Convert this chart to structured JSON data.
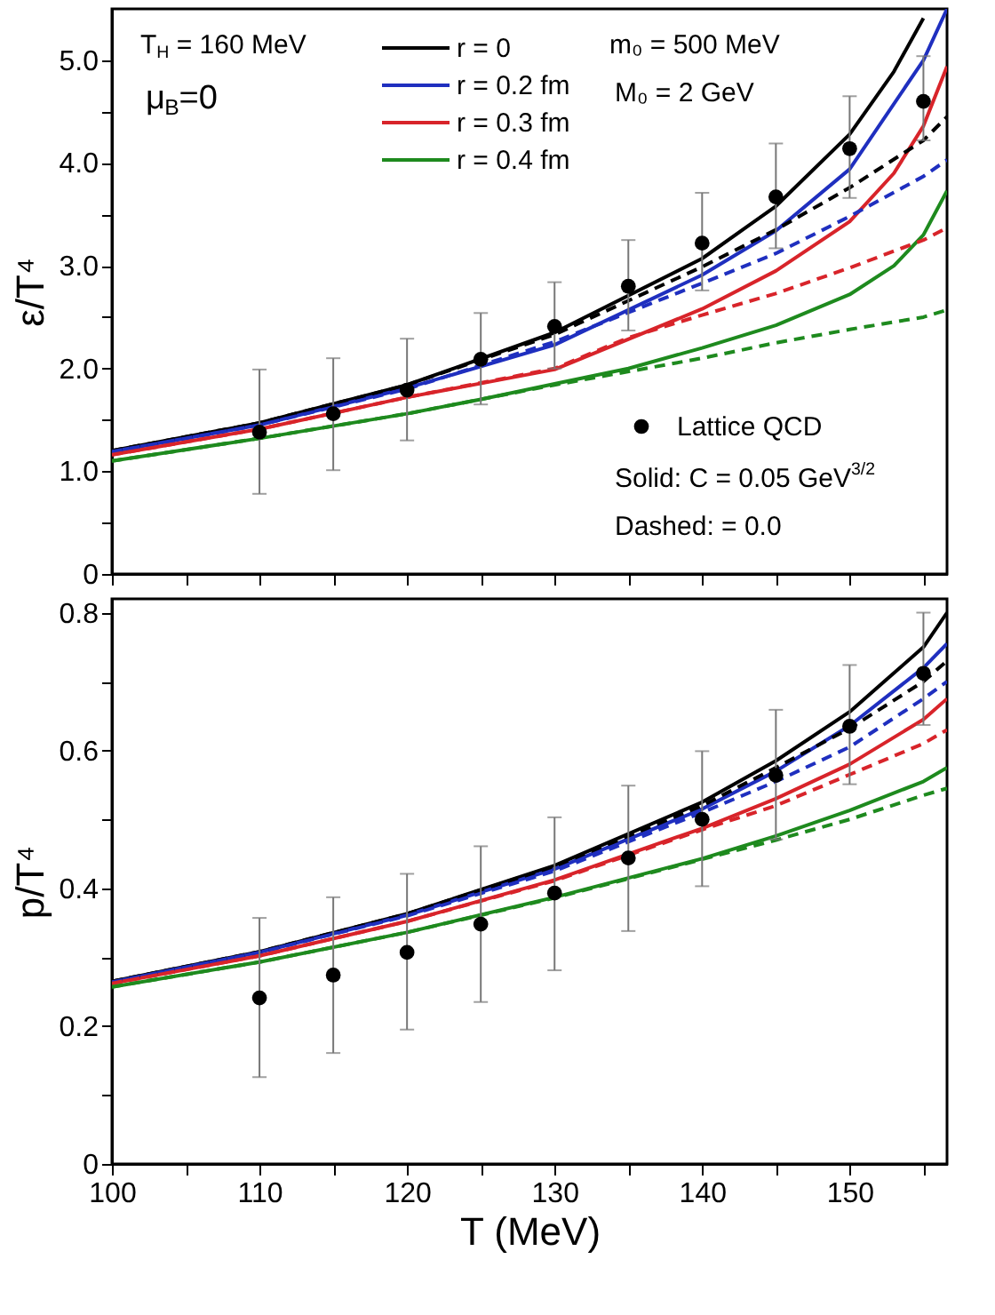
{
  "chart_data": [
    {
      "type": "line",
      "ylabel": "ε/T⁴",
      "xlim": [
        100,
        156.6
      ],
      "ylim": [
        0,
        5.5
      ],
      "xticks": [
        100,
        {
          "value": 105,
          "label": null
        },
        110,
        {
          "value": 115,
          "label": null
        },
        120,
        {
          "value": 125,
          "label": null
        },
        130,
        {
          "value": 135,
          "label": null
        },
        140,
        {
          "value": 145,
          "label": null
        },
        150,
        {
          "value": 155,
          "label": null
        }
      ],
      "yticks": [
        0,
        {
          "value": 0.5,
          "label": null
        },
        {
          "value": 1,
          "label": "1.0"
        },
        {
          "value": 1.5,
          "label": null
        },
        {
          "value": 2,
          "label": "2.0"
        },
        {
          "value": 2.5,
          "label": null
        },
        {
          "value": 3,
          "label": "3.0"
        },
        {
          "value": 3.5,
          "label": null
        },
        {
          "value": 4,
          "label": "4.0"
        },
        {
          "value": 4.5,
          "label": null
        },
        {
          "value": 5,
          "label": "5.0"
        }
      ],
      "tick_labels": "y",
      "legend": "top",
      "grid": false,
      "annotations": [
        "T$_{H}$ = 160 MeV",
        "μ$_{B}$=0",
        "m₀ = 500 MeV",
        "M₀ = 2 GeV",
        "Solid:  C = 0.05 GeV$^{3/2}$",
        "Dashed: = 0.0"
      ],
      "series": [
        {
          "name": "r = 0",
          "color": "#000000",
          "line_style": "solid",
          "x": [
            100,
            110,
            120,
            130,
            140,
            145,
            150,
            153,
            155
          ],
          "values": [
            1.2,
            1.47,
            1.84,
            2.35,
            3.07,
            3.58,
            4.28,
            4.89,
            5.41
          ]
        },
        {
          "name": "r = 0.2 fm",
          "color": "#1f2fbf",
          "line_style": "solid",
          "x": [
            100,
            110,
            120,
            130,
            140,
            145,
            150,
            155,
            156.6
          ],
          "values": [
            1.19,
            1.45,
            1.81,
            2.23,
            2.91,
            3.34,
            3.94,
            5.0,
            5.5
          ]
        },
        {
          "name": "r = 0.3 fm",
          "color": "#d8242a",
          "line_style": "solid",
          "x": [
            100,
            110,
            120,
            130,
            140,
            145,
            150,
            153,
            155,
            156.6
          ],
          "values": [
            1.16,
            1.41,
            1.72,
            1.99,
            2.58,
            2.95,
            3.43,
            3.9,
            4.36,
            4.94
          ]
        },
        {
          "name": "r = 0.4 fm",
          "color": "#1e8a1e",
          "line_style": "solid",
          "x": [
            100,
            110,
            120,
            125,
            130,
            135,
            140,
            145,
            150,
            153,
            155,
            156.6
          ],
          "values": [
            1.1,
            1.32,
            1.56,
            1.7,
            1.85,
            2.0,
            2.2,
            2.42,
            2.72,
            3.0,
            3.3,
            3.73
          ]
        },
        {
          "color": "#000000",
          "line_style": "dashed",
          "x": [
            100,
            110,
            120,
            130,
            140,
            145,
            150,
            155,
            156.6
          ],
          "values": [
            1.2,
            1.47,
            1.84,
            2.33,
            2.99,
            3.35,
            3.76,
            4.22,
            4.45
          ]
        },
        {
          "color": "#1f2fbf",
          "line_style": "dashed",
          "x": [
            100,
            110,
            120,
            130,
            140,
            145,
            150,
            155,
            156.6
          ],
          "values": [
            1.19,
            1.45,
            1.8,
            2.26,
            2.83,
            3.12,
            3.48,
            3.87,
            4.03
          ]
        },
        {
          "color": "#d8242a",
          "line_style": "dashed",
          "x": [
            100,
            110,
            120,
            130,
            135,
            140,
            145,
            150,
            155,
            156.6
          ],
          "values": [
            1.16,
            1.41,
            1.72,
            2.0,
            2.3,
            2.52,
            2.73,
            2.98,
            3.25,
            3.37
          ]
        },
        {
          "color": "#1e8a1e",
          "line_style": "dashed",
          "x": [
            100,
            110,
            120,
            130,
            140,
            145,
            150,
            155,
            156.6
          ],
          "values": [
            1.1,
            1.32,
            1.56,
            1.84,
            2.1,
            2.25,
            2.38,
            2.5,
            2.57
          ]
        },
        {
          "name": "Lattice QCD",
          "type": "scatter",
          "marker": "circle",
          "color": "#000000",
          "x": [
            110,
            115,
            120,
            125,
            130,
            135,
            140,
            145,
            150,
            155
          ],
          "values": [
            1.38,
            1.56,
            1.79,
            2.09,
            2.41,
            2.8,
            3.22,
            3.67,
            4.14,
            4.6
          ],
          "errors": [
            [
              0.78,
              1.99
            ],
            [
              1.01,
              2.1
            ],
            [
              1.3,
              2.29
            ],
            [
              1.65,
              2.54
            ],
            [
              2.0,
              2.84
            ],
            [
              2.37,
              3.25
            ],
            [
              2.76,
              3.71
            ],
            [
              3.17,
              4.19
            ],
            [
              3.66,
              4.65
            ],
            [
              4.22,
              5.04
            ]
          ]
        }
      ]
    },
    {
      "type": "line",
      "xlabel": "T (MeV)",
      "ylabel": "p/T⁴",
      "xlim": [
        100,
        156.6
      ],
      "ylim": [
        0,
        0.82
      ],
      "xticks": [
        100,
        {
          "value": 105,
          "label": null
        },
        110,
        {
          "value": 115,
          "label": null
        },
        120,
        {
          "value": 125,
          "label": null
        },
        130,
        {
          "value": 135,
          "label": null
        },
        140,
        {
          "value": 145,
          "label": null
        },
        150,
        {
          "value": 155,
          "label": null
        }
      ],
      "yticks": [
        0,
        {
          "value": 0.1,
          "label": null
        },
        0.2,
        {
          "value": 0.3,
          "label": null
        },
        0.4,
        {
          "value": 0.5,
          "label": null
        },
        0.6,
        {
          "value": 0.7,
          "label": null
        },
        0.8
      ],
      "grid": false,
      "series": [
        {
          "color": "#000000",
          "line_style": "solid",
          "x": [
            100,
            110,
            120,
            130,
            140,
            145,
            150,
            155,
            156.6
          ],
          "values": [
            0.265,
            0.308,
            0.363,
            0.433,
            0.525,
            0.585,
            0.656,
            0.75,
            0.8
          ]
        },
        {
          "color": "#1f2fbf",
          "line_style": "solid",
          "x": [
            100,
            110,
            120,
            130,
            140,
            145,
            150,
            155,
            156.6
          ],
          "values": [
            0.264,
            0.307,
            0.361,
            0.428,
            0.515,
            0.57,
            0.636,
            0.72,
            0.755
          ]
        },
        {
          "color": "#d8242a",
          "line_style": "solid",
          "x": [
            100,
            110,
            120,
            130,
            140,
            145,
            150,
            155,
            156.6
          ],
          "values": [
            0.262,
            0.302,
            0.352,
            0.412,
            0.487,
            0.53,
            0.58,
            0.645,
            0.675
          ]
        },
        {
          "color": "#1e8a1e",
          "line_style": "solid",
          "x": [
            100,
            110,
            120,
            130,
            140,
            145,
            150,
            155,
            156.6
          ],
          "values": [
            0.257,
            0.293,
            0.336,
            0.387,
            0.443,
            0.476,
            0.513,
            0.555,
            0.575
          ]
        },
        {
          "color": "#000000",
          "line_style": "dashed",
          "x": [
            100,
            110,
            120,
            130,
            140,
            145,
            150,
            155,
            156.6
          ],
          "values": [
            0.265,
            0.308,
            0.363,
            0.432,
            0.52,
            0.575,
            0.632,
            0.7,
            0.73
          ]
        },
        {
          "color": "#1f2fbf",
          "line_style": "dashed",
          "x": [
            100,
            110,
            120,
            130,
            140,
            145,
            150,
            155,
            156.6
          ],
          "values": [
            0.264,
            0.307,
            0.36,
            0.425,
            0.51,
            0.555,
            0.605,
            0.675,
            0.7
          ]
        },
        {
          "color": "#d8242a",
          "line_style": "dashed",
          "x": [
            100,
            110,
            120,
            130,
            140,
            145,
            150,
            155,
            156.6
          ],
          "values": [
            0.262,
            0.302,
            0.352,
            0.411,
            0.485,
            0.52,
            0.565,
            0.61,
            0.63
          ]
        },
        {
          "color": "#1e8a1e",
          "line_style": "dashed",
          "x": [
            100,
            110,
            120,
            130,
            140,
            145,
            150,
            155,
            156.6
          ],
          "values": [
            0.257,
            0.293,
            0.336,
            0.386,
            0.442,
            0.47,
            0.5,
            0.535,
            0.545
          ]
        },
        {
          "type": "scatter",
          "marker": "circle",
          "color": "#000000",
          "x": [
            110,
            115,
            120,
            125,
            130,
            135,
            140,
            145,
            150,
            155
          ],
          "values": [
            0.241,
            0.274,
            0.307,
            0.348,
            0.393,
            0.444,
            0.5,
            0.564,
            0.635,
            0.712
          ],
          "errors": [
            [
              0.126,
              0.357
            ],
            [
              0.161,
              0.387
            ],
            [
              0.195,
              0.421
            ],
            [
              0.235,
              0.461
            ],
            [
              0.281,
              0.503
            ],
            [
              0.338,
              0.549
            ],
            [
              0.403,
              0.599
            ],
            [
              0.471,
              0.659
            ],
            [
              0.551,
              0.724
            ],
            [
              0.637,
              0.8
            ]
          ]
        }
      ]
    }
  ]
}
